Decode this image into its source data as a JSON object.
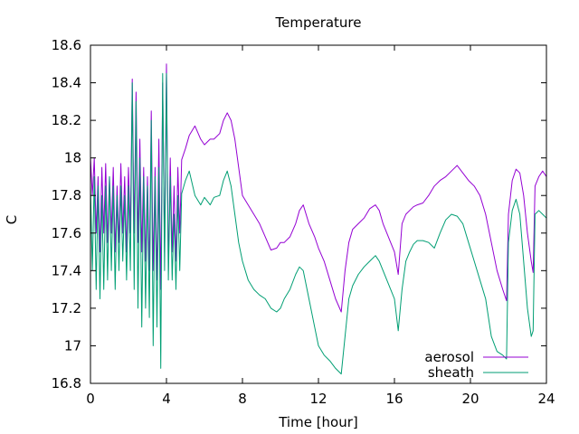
{
  "chart_data": {
    "type": "line",
    "title": "Temperature",
    "xlabel": "Time [hour]",
    "ylabel": "C",
    "xlim": [
      0,
      24
    ],
    "ylim": [
      16.8,
      18.6
    ],
    "xticks": [
      0,
      4,
      8,
      12,
      16,
      20,
      24
    ],
    "yticks": [
      16.8,
      17,
      17.2,
      17.4,
      17.6,
      17.8,
      18,
      18.2,
      18.4,
      18.6
    ],
    "ytick_labels": [
      "16.8",
      "17",
      "17.2",
      "17.4",
      "17.6",
      "17.8",
      "18",
      "18.2",
      "18.4",
      "18.6"
    ],
    "legend_position": "bottom-right",
    "grid": false,
    "series": [
      {
        "name": "aerosol",
        "color": "#9400d3",
        "x": [
          0,
          0.1,
          0.2,
          0.3,
          0.4,
          0.5,
          0.6,
          0.7,
          0.8,
          0.9,
          1.0,
          1.1,
          1.2,
          1.3,
          1.4,
          1.5,
          1.6,
          1.7,
          1.8,
          1.9,
          2.0,
          2.1,
          2.2,
          2.3,
          2.4,
          2.5,
          2.6,
          2.7,
          2.8,
          2.9,
          3.0,
          3.1,
          3.2,
          3.3,
          3.4,
          3.5,
          3.6,
          3.7,
          3.8,
          3.9,
          4.0,
          4.1,
          4.2,
          4.3,
          4.4,
          4.5,
          4.6,
          4.7,
          4.8,
          5.0,
          5.2,
          5.5,
          5.8,
          6.0,
          6.3,
          6.5,
          6.8,
          7.0,
          7.2,
          7.4,
          7.6,
          7.8,
          8.0,
          8.3,
          8.6,
          8.9,
          9.2,
          9.5,
          9.8,
          10.0,
          10.2,
          10.5,
          10.8,
          11.0,
          11.2,
          11.5,
          11.8,
          12.0,
          12.3,
          12.6,
          12.9,
          13.2,
          13.4,
          13.6,
          13.8,
          14.1,
          14.4,
          14.7,
          15.0,
          15.2,
          15.4,
          15.6,
          15.8,
          16.0,
          16.2,
          16.4,
          16.6,
          16.8,
          17.0,
          17.2,
          17.5,
          17.8,
          18.1,
          18.4,
          18.7,
          19.0,
          19.3,
          19.6,
          19.9,
          20.2,
          20.5,
          20.8,
          21.1,
          21.4,
          21.7,
          21.9,
          22.0,
          22.2,
          22.4,
          22.6,
          22.8,
          23.0,
          23.2,
          23.3,
          23.4,
          23.6,
          23.8,
          24.0
        ],
        "y": [
          18.0,
          17.8,
          18.0,
          17.6,
          17.9,
          17.5,
          17.95,
          17.6,
          17.97,
          17.55,
          17.9,
          17.6,
          17.95,
          17.5,
          17.85,
          17.55,
          17.97,
          17.6,
          17.9,
          17.5,
          17.95,
          17.6,
          18.42,
          17.6,
          18.35,
          17.55,
          18.1,
          17.5,
          17.95,
          17.45,
          17.9,
          17.4,
          18.25,
          17.4,
          17.95,
          17.35,
          18.1,
          17.3,
          18.4,
          17.5,
          18.5,
          17.4,
          18.0,
          17.5,
          17.85,
          17.45,
          17.95,
          17.6,
          17.99,
          18.05,
          18.12,
          18.17,
          18.1,
          18.07,
          18.1,
          18.1,
          18.13,
          18.2,
          18.24,
          18.2,
          18.1,
          17.95,
          17.8,
          17.75,
          17.7,
          17.65,
          17.58,
          17.51,
          17.52,
          17.55,
          17.55,
          17.58,
          17.65,
          17.72,
          17.75,
          17.65,
          17.58,
          17.52,
          17.45,
          17.35,
          17.25,
          17.18,
          17.4,
          17.55,
          17.62,
          17.65,
          17.68,
          17.73,
          17.75,
          17.72,
          17.65,
          17.6,
          17.55,
          17.5,
          17.38,
          17.65,
          17.7,
          17.72,
          17.74,
          17.75,
          17.76,
          17.8,
          17.85,
          17.88,
          17.9,
          17.93,
          17.96,
          17.92,
          17.88,
          17.85,
          17.8,
          17.7,
          17.55,
          17.4,
          17.3,
          17.24,
          17.7,
          17.88,
          17.94,
          17.92,
          17.8,
          17.6,
          17.45,
          17.39,
          17.85,
          17.9,
          17.93,
          17.9
        ]
      },
      {
        "name": "sheath",
        "color": "#009e73",
        "x": [
          0,
          0.1,
          0.2,
          0.3,
          0.4,
          0.5,
          0.6,
          0.7,
          0.8,
          0.9,
          1.0,
          1.1,
          1.2,
          1.3,
          1.4,
          1.5,
          1.6,
          1.7,
          1.8,
          1.9,
          2.0,
          2.1,
          2.2,
          2.3,
          2.4,
          2.5,
          2.6,
          2.7,
          2.8,
          2.9,
          3.0,
          3.1,
          3.2,
          3.3,
          3.4,
          3.5,
          3.6,
          3.7,
          3.8,
          3.9,
          4.0,
          4.1,
          4.2,
          4.3,
          4.4,
          4.5,
          4.6,
          4.7,
          4.8,
          5.0,
          5.2,
          5.5,
          5.8,
          6.0,
          6.3,
          6.5,
          6.8,
          7.0,
          7.2,
          7.4,
          7.6,
          7.8,
          8.0,
          8.3,
          8.6,
          8.9,
          9.2,
          9.5,
          9.8,
          10.0,
          10.2,
          10.5,
          10.8,
          11.0,
          11.2,
          11.5,
          11.8,
          12.0,
          12.3,
          12.6,
          12.9,
          13.2,
          13.4,
          13.6,
          13.8,
          14.1,
          14.4,
          14.7,
          15.0,
          15.2,
          15.4,
          15.6,
          15.8,
          16.0,
          16.2,
          16.4,
          16.6,
          16.8,
          17.0,
          17.2,
          17.5,
          17.8,
          18.1,
          18.4,
          18.7,
          19.0,
          19.3,
          19.6,
          19.9,
          20.2,
          20.5,
          20.8,
          21.1,
          21.4,
          21.7,
          21.9,
          22.0,
          22.2,
          22.4,
          22.6,
          22.8,
          23.0,
          23.2,
          23.3,
          23.4,
          23.6,
          23.8,
          24.0
        ],
        "y": [
          17.85,
          17.4,
          17.9,
          17.3,
          17.85,
          17.25,
          17.8,
          17.3,
          17.85,
          17.35,
          17.9,
          17.4,
          17.85,
          17.3,
          17.8,
          17.4,
          17.85,
          17.45,
          17.8,
          17.35,
          17.85,
          17.4,
          18.4,
          17.3,
          18.3,
          17.2,
          18.0,
          17.1,
          17.9,
          17.2,
          17.85,
          17.15,
          18.2,
          17.0,
          17.9,
          17.1,
          17.95,
          16.88,
          18.45,
          17.4,
          18.45,
          17.35,
          17.9,
          17.35,
          17.7,
          17.3,
          17.8,
          17.4,
          17.81,
          17.88,
          17.93,
          17.8,
          17.75,
          17.79,
          17.75,
          17.79,
          17.8,
          17.88,
          17.93,
          17.85,
          17.7,
          17.55,
          17.45,
          17.35,
          17.3,
          17.27,
          17.25,
          17.2,
          17.18,
          17.2,
          17.25,
          17.3,
          17.38,
          17.42,
          17.4,
          17.25,
          17.1,
          17.0,
          16.95,
          16.92,
          16.88,
          16.85,
          17.05,
          17.25,
          17.32,
          17.38,
          17.42,
          17.45,
          17.48,
          17.45,
          17.4,
          17.35,
          17.3,
          17.25,
          17.08,
          17.3,
          17.45,
          17.5,
          17.54,
          17.56,
          17.56,
          17.55,
          17.52,
          17.6,
          17.67,
          17.7,
          17.69,
          17.65,
          17.55,
          17.45,
          17.35,
          17.25,
          17.05,
          16.97,
          16.95,
          16.93,
          17.55,
          17.72,
          17.78,
          17.7,
          17.45,
          17.2,
          17.05,
          17.08,
          17.7,
          17.72,
          17.7,
          17.68
        ]
      }
    ]
  }
}
